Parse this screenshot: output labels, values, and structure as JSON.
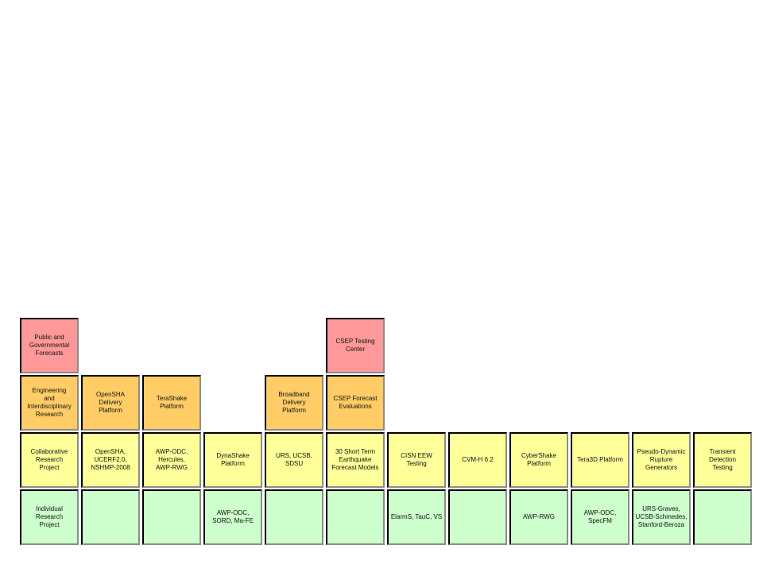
{
  "colors": {
    "level_public": "#ff9999",
    "level_engineering": "#ffcc66",
    "level_collaborative": "#ffff99",
    "level_individual": "#ccffcc"
  },
  "rows": {
    "public": {
      "label": "Public and\nGovernmental\nForecasts",
      "csep_testing_center": "CSEP Testing\nCenter"
    },
    "engineering": {
      "label": "Engineering\nand\nInterdisciplinary\nResearch",
      "opensha_delivery": "OpenSHA\nDelivery\nPlatform",
      "terashake": "TeraShake\nPlatform",
      "broadband": "Broadband\nDelivery\nPlatform",
      "csep_forecast": "CSEP Forecast\nEvaluations"
    },
    "collaborative": {
      "label": "Collaborative\nResearch\nProject",
      "opensha_ucerf": "OpenSHA,\nUCERF2.0,\nNSHMP-2008",
      "awp_odc_hercules": "AWP-ODC,\nHercules,\nAWP-RWG",
      "dynashake": "DynaShake\nPlatform",
      "urs_ucsb": "URS, UCSB,\nSDSU",
      "thirty_short_term": "30 Short Term\nEarthquake\nForecast Models",
      "cisn_eew": "CISN EEW Testing",
      "cvm_h": "CVM-H 6.2",
      "cybershake": "CyberShake\nPlatform",
      "tera3d": "Tera3D Platform",
      "pseudo_dynamic": "Pseudo-Dynamic\nRupture Generators",
      "transient": "Transient Detection\nTesting"
    },
    "individual": {
      "label": "Individual\nResearch\nProject",
      "awp_odc_sord": "AWP-ODC,\nSORD, Ma-FE",
      "elarms": "ElarmS, TauC, VS",
      "awp_rwg": "AWP-RWG",
      "awp_odc_specfm": "AWP-ODC,\nSpecFM",
      "urs_graves": "URS-Graves,\nUCSB-Schmedes,\nStanford-Beroza"
    }
  }
}
